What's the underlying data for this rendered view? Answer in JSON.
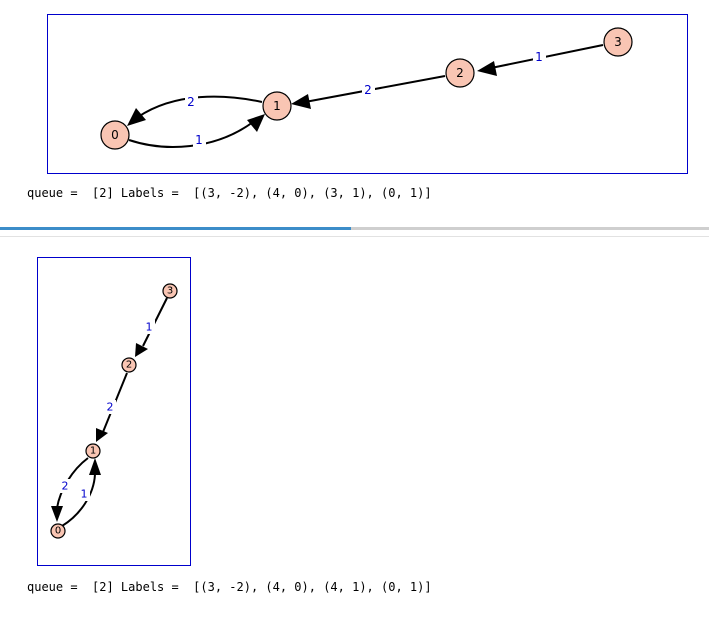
{
  "graph_top": {
    "nodes": [
      "0",
      "1",
      "2",
      "3"
    ],
    "edges": [
      {
        "from": "3",
        "to": "2",
        "label": "1"
      },
      {
        "from": "2",
        "to": "1",
        "label": "2"
      },
      {
        "from": "1",
        "to": "0",
        "label": "2"
      },
      {
        "from": "0",
        "to": "1",
        "label": "1"
      }
    ]
  },
  "graph_bottom": {
    "nodes": [
      "0",
      "1",
      "2",
      "3"
    ],
    "edges": [
      {
        "from": "3",
        "to": "2",
        "label": "1"
      },
      {
        "from": "2",
        "to": "1",
        "label": "2"
      },
      {
        "from": "1",
        "to": "0",
        "label": "2"
      },
      {
        "from": "0",
        "to": "1",
        "label": "1"
      }
    ]
  },
  "output_top": {
    "text": "queue =  [2] Labels =  [(3, -2), (4, 0), (3, 1), (0, 1)]"
  },
  "output_bottom": {
    "text": "queue =  [2] Labels =  [(3, -2), (4, 0), (4, 1), (0, 1)]"
  },
  "progress": {
    "fraction": 0.495
  },
  "colors": {
    "frame": "#0000cc",
    "node_fill": "#f9c5b3",
    "edge_label": "#0000cc",
    "progress_fill": "#3c8dc9",
    "progress_track": "#cfcfcf"
  }
}
